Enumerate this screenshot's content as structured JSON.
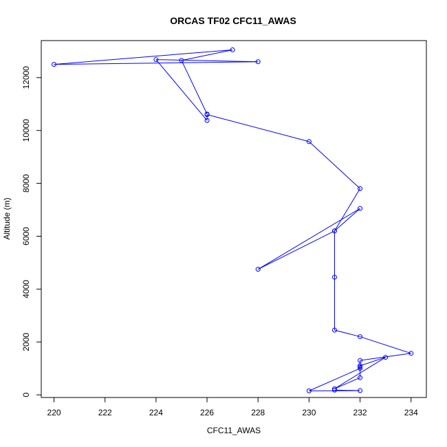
{
  "chart_data": {
    "type": "line",
    "title": "ORCAS TF02 CFC11_AWAS",
    "xlabel": "CFC11_AWAS",
    "ylabel": "Altitude (m)",
    "xlim": [
      219.5,
      234.6
    ],
    "ylim": [
      -100,
      13400
    ],
    "x_ticks": [
      220,
      222,
      224,
      226,
      228,
      230,
      232,
      234
    ],
    "y_ticks": [
      0,
      2000,
      4000,
      6000,
      8000,
      10000,
      12000
    ],
    "grid": false,
    "legend": "none",
    "color": "#0000ff",
    "series": [
      {
        "x": [
          231,
          232,
          230,
          232,
          232,
          233,
          231,
          232,
          232,
          232,
          234,
          232,
          231,
          231,
          231,
          228,
          232,
          231,
          232,
          230,
          226,
          226,
          224,
          228,
          220,
          227,
          225,
          226
        ],
        "y": [
          180,
          160,
          150,
          1000,
          1100,
          1420,
          230,
          650,
          1050,
          1300,
          1570,
          2200,
          2450,
          4450,
          6200,
          4750,
          7050,
          6200,
          7800,
          9580,
          10600,
          10380,
          12680,
          12600,
          12500,
          13050,
          12650,
          10620
        ]
      }
    ]
  }
}
